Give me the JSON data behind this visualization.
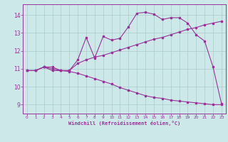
{
  "xlabel": "Windchill (Refroidissement éolien,°C)",
  "bg_color": "#cce8e8",
  "line_color": "#993399",
  "grid_color": "#aacccc",
  "xlim": [
    -0.5,
    23.5
  ],
  "ylim": [
    8.5,
    14.6
  ],
  "xticks": [
    0,
    1,
    2,
    3,
    4,
    5,
    6,
    7,
    8,
    9,
    10,
    11,
    12,
    13,
    14,
    15,
    16,
    17,
    18,
    19,
    20,
    21,
    22,
    23
  ],
  "yticks": [
    9,
    10,
    11,
    12,
    13,
    14
  ],
  "line1_x": [
    0,
    1,
    2,
    3,
    4,
    5,
    6,
    7,
    8,
    9,
    10,
    11,
    12,
    13,
    14,
    15,
    16,
    17,
    18,
    19,
    20,
    21,
    22,
    23
  ],
  "line1_y": [
    10.9,
    10.9,
    11.1,
    11.1,
    10.9,
    10.9,
    11.5,
    12.75,
    11.6,
    12.8,
    12.6,
    12.7,
    13.35,
    14.1,
    14.15,
    14.05,
    13.75,
    13.85,
    13.85,
    13.55,
    12.9,
    12.55,
    11.1,
    9.05
  ],
  "line2_x": [
    0,
    1,
    2,
    3,
    4,
    5,
    6,
    7,
    8,
    9,
    10,
    11,
    12,
    13,
    14,
    15,
    16,
    17,
    18,
    19,
    20,
    21,
    22,
    23
  ],
  "line2_y": [
    10.9,
    10.9,
    11.1,
    10.9,
    10.9,
    10.9,
    11.3,
    11.5,
    11.65,
    11.75,
    11.9,
    12.05,
    12.2,
    12.35,
    12.5,
    12.65,
    12.75,
    12.9,
    13.05,
    13.2,
    13.3,
    13.45,
    13.55,
    13.65
  ],
  "line3_x": [
    0,
    1,
    2,
    3,
    4,
    5,
    6,
    7,
    8,
    9,
    10,
    11,
    12,
    13,
    14,
    15,
    16,
    17,
    18,
    19,
    20,
    21,
    22,
    23
  ],
  "line3_y": [
    10.9,
    10.9,
    11.1,
    11.0,
    10.9,
    10.85,
    10.75,
    10.6,
    10.45,
    10.3,
    10.15,
    9.95,
    9.8,
    9.65,
    9.5,
    9.4,
    9.35,
    9.25,
    9.2,
    9.15,
    9.1,
    9.05,
    9.0,
    9.0
  ]
}
